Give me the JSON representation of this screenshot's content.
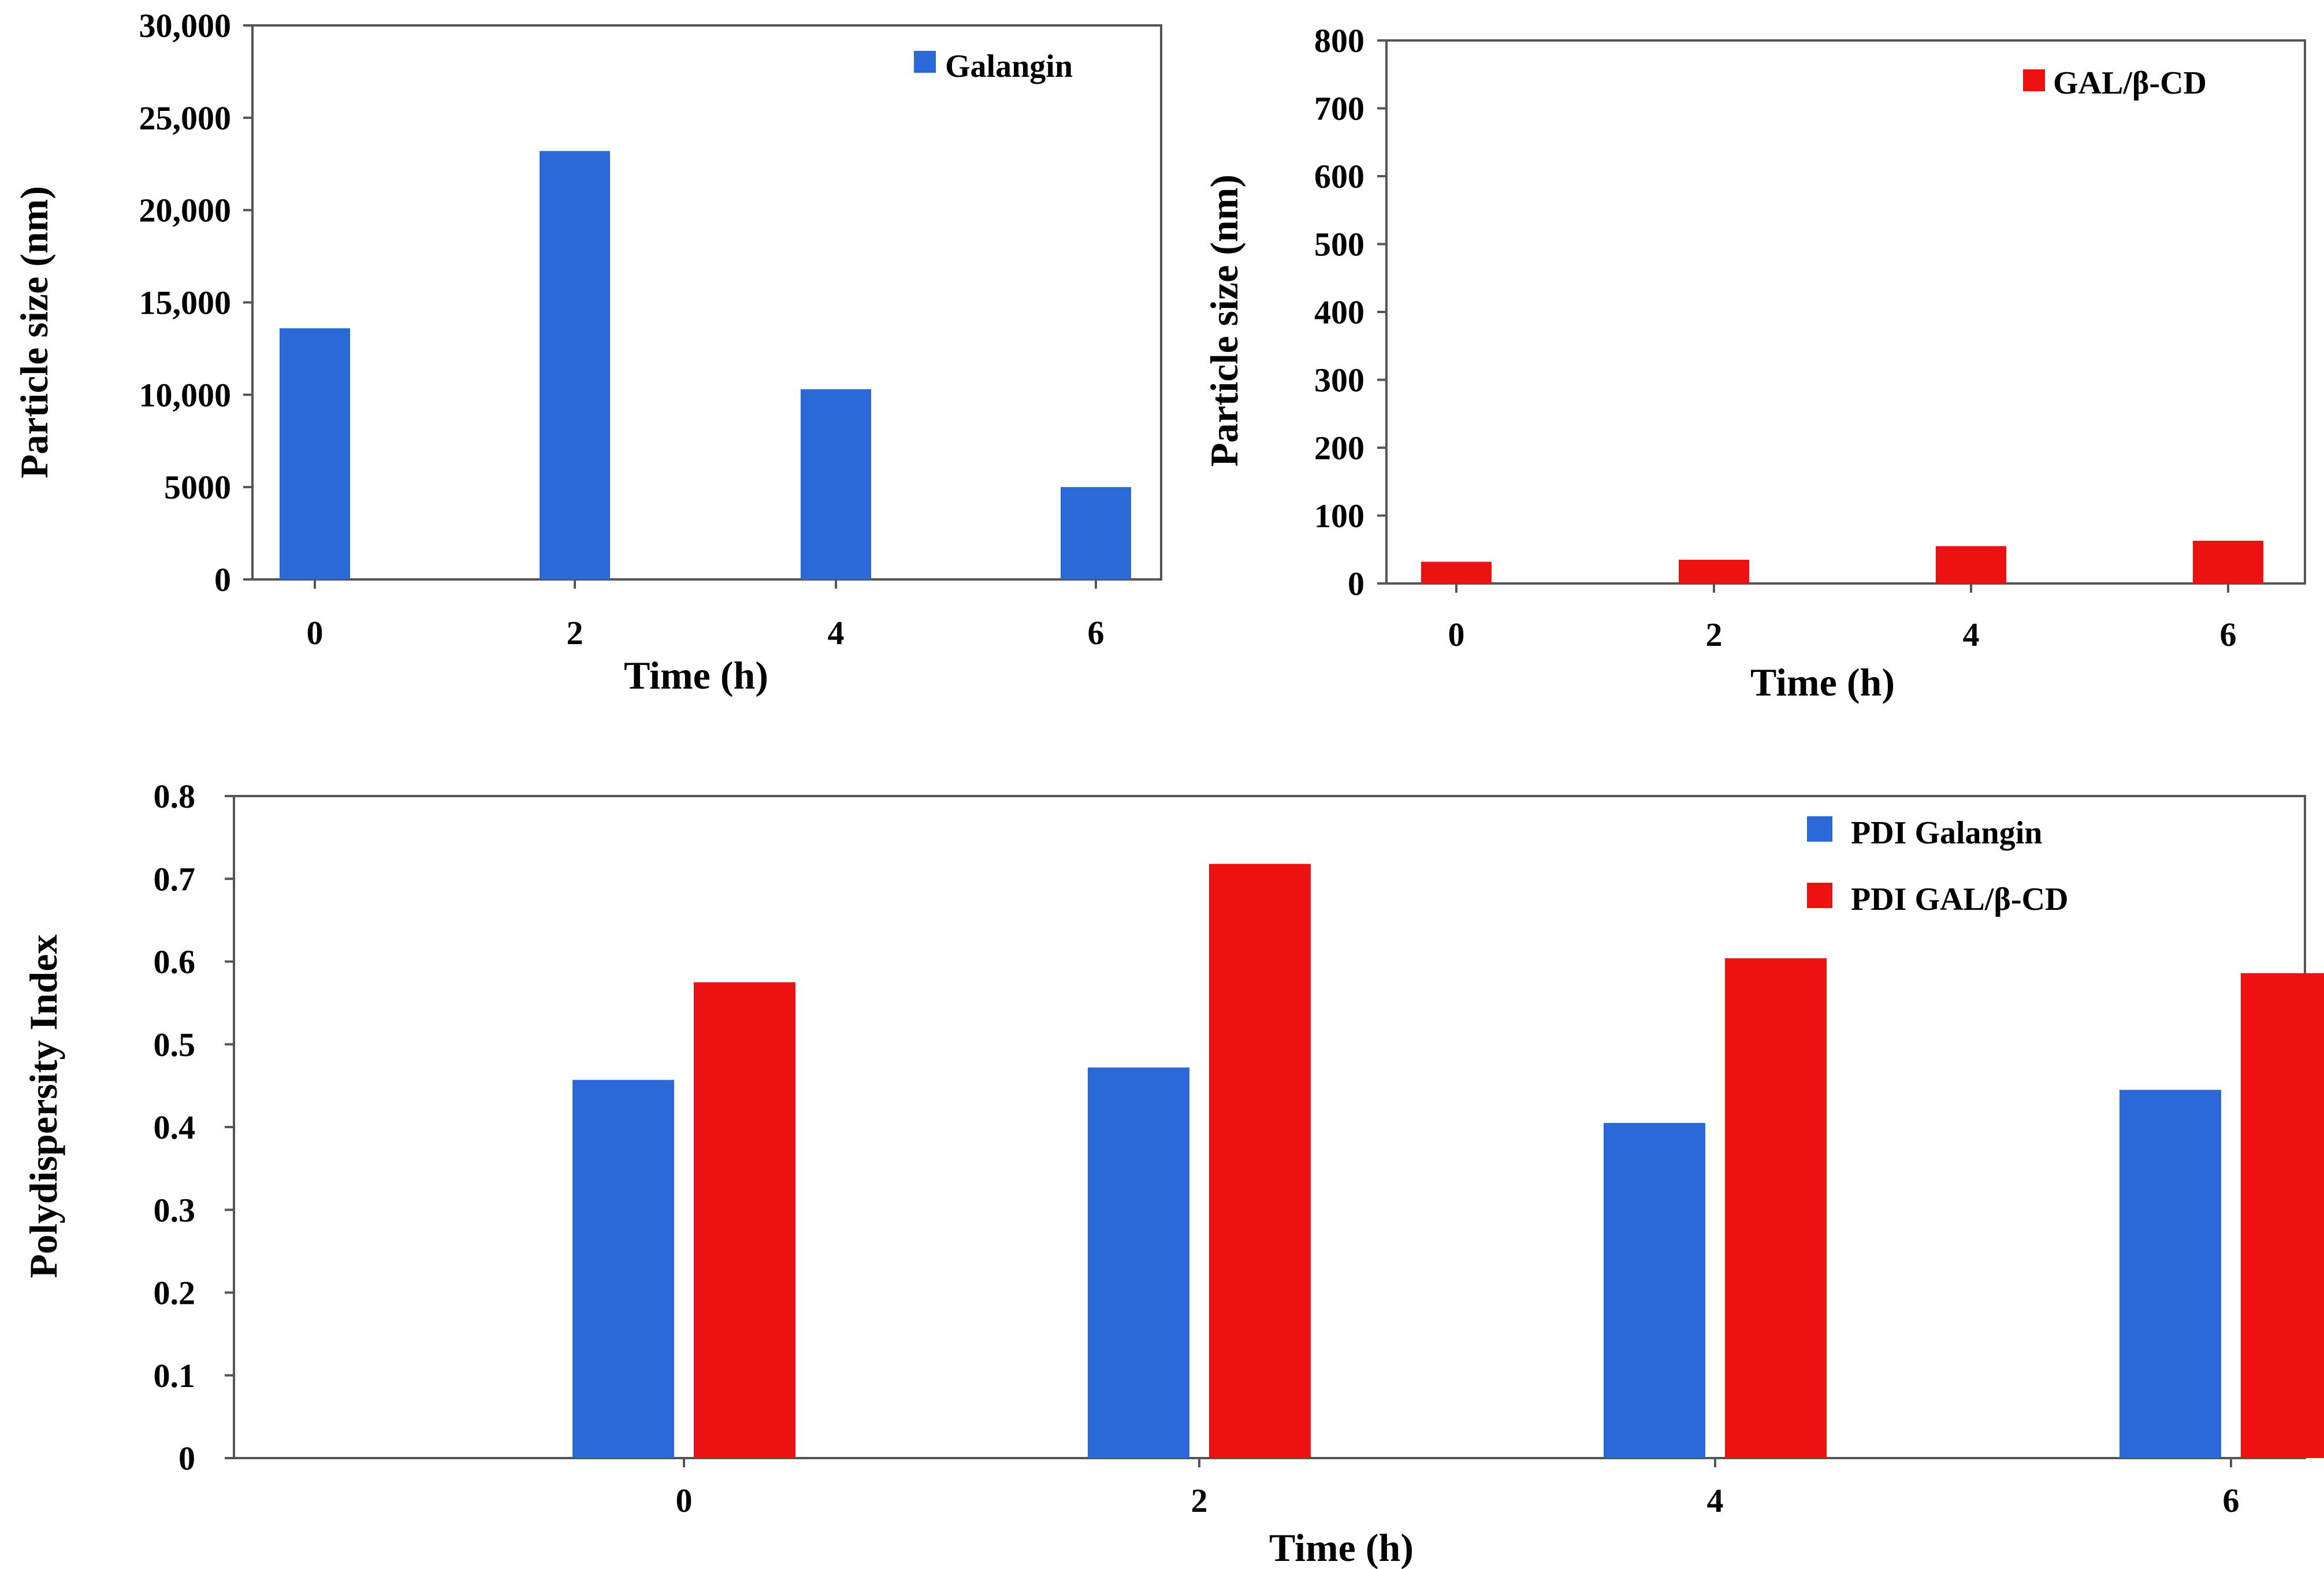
{
  "chart_data": [
    {
      "type": "bar",
      "categories": [
        "0",
        "2",
        "4",
        "6"
      ],
      "series": [
        {
          "name": "Galangin",
          "color": "#2b68d8",
          "values": [
            13600,
            23200,
            10300,
            5000
          ]
        }
      ],
      "xlabel": "Time (h)",
      "ylabel": "Particle size (nm)",
      "ylim": [
        0,
        30000
      ],
      "yticks": [
        0,
        5000,
        10000,
        15000,
        20000,
        25000,
        30000
      ],
      "ytick_labels": [
        "0",
        "5000",
        "10,000",
        "15,000",
        "20,000",
        "25,000",
        "30,000"
      ],
      "grid": false,
      "legend": "top-right"
    },
    {
      "type": "bar",
      "categories": [
        "0",
        "2",
        "4",
        "6"
      ],
      "series": [
        {
          "name": "GAL/β-CD",
          "color": "#ee1111",
          "values": [
            32,
            35,
            55,
            63
          ]
        }
      ],
      "xlabel": "Time (h)",
      "ylabel": "Particle size (nm)",
      "ylim": [
        0,
        800
      ],
      "yticks": [
        0,
        100,
        200,
        300,
        400,
        500,
        600,
        700,
        800
      ],
      "ytick_labels": [
        "0",
        "100",
        "200",
        "300",
        "400",
        "500",
        "600",
        "700",
        "800"
      ],
      "grid": false,
      "legend": "top-right"
    },
    {
      "type": "bar",
      "categories": [
        "0",
        "2",
        "4",
        "6"
      ],
      "series": [
        {
          "name": "PDI Galangin",
          "color": "#2b68d8",
          "values": [
            0.457,
            0.472,
            0.405,
            0.445
          ]
        },
        {
          "name": "PDI GAL/β-CD",
          "color": "#ee1111",
          "values": [
            0.575,
            0.718,
            0.604,
            0.586
          ]
        }
      ],
      "xlabel": "Time (h)",
      "ylabel": "Polydispersity Index",
      "ylim": [
        0,
        0.8
      ],
      "yticks": [
        0,
        0.1,
        0.2,
        0.3,
        0.4,
        0.5,
        0.6,
        0.7,
        0.8
      ],
      "ytick_labels": [
        "0",
        "0.1",
        "0.2",
        "0.3",
        "0.4",
        "0.5",
        "0.6",
        "0.7",
        "0.8"
      ],
      "grid": false,
      "legend": "top-right"
    }
  ]
}
